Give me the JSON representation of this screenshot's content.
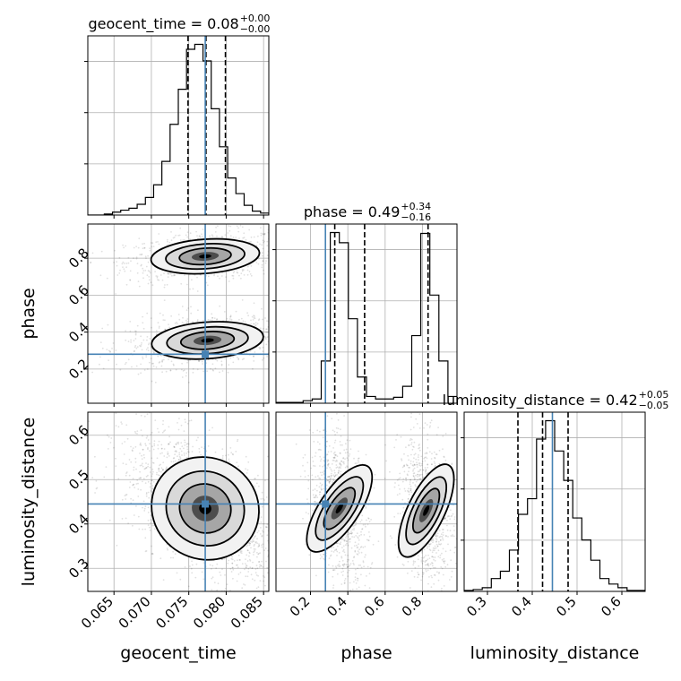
{
  "chart_data": {
    "type": "corner",
    "parameters": [
      "geocent_time",
      "phase",
      "luminosity_distance"
    ],
    "truths": {
      "geocent_time": 0.0772,
      "phase": 0.28,
      "luminosity_distance": 0.445
    },
    "titles": [
      {
        "param": "geocent_time",
        "prefix": "geocent_time = 0.08",
        "sup": "+0.00",
        "sub": "−0.00"
      },
      {
        "param": "phase",
        "prefix": "phase = 0.49",
        "sup": "+0.34",
        "sub": "−0.16"
      },
      {
        "param": "luminosity_distance",
        "prefix": "luminosity_distance = 0.42",
        "sup": "+0.05",
        "sub": "−0.05"
      }
    ],
    "axis_labels": {
      "geocent_time": "geocent_time",
      "phase": "phase",
      "luminosity_distance": "luminosity_distance"
    },
    "ranges": {
      "geocent_time": [
        0.0615,
        0.0857
      ],
      "phase": [
        0.015,
        0.985
      ],
      "luminosity_distance": [
        0.248,
        0.652
      ]
    },
    "ticks": {
      "geocent_time": [
        "0.065",
        "0.070",
        "0.075",
        "0.080",
        "0.085"
      ],
      "phase_x": [
        "0.2",
        "0.4",
        "0.6",
        "0.8"
      ],
      "phase_y": [
        "0.2",
        "0.4",
        "0.6",
        "0.8"
      ],
      "luminosity_distance_x": [
        "0.3",
        "0.4",
        "0.5",
        "0.6"
      ],
      "luminosity_distance_y": [
        "0.3",
        "0.4",
        "0.5",
        "0.6"
      ]
    },
    "quantiles": {
      "geocent_time": [
        0.0749,
        0.0773,
        0.0799
      ],
      "phase": [
        0.33,
        0.49,
        0.83
      ],
      "luminosity_distance": [
        0.368,
        0.423,
        0.48
      ]
    },
    "histograms": {
      "geocent_time": {
        "range": [
          0.0615,
          0.0857
        ],
        "counts": [
          0,
          0,
          1,
          3,
          5,
          7,
          11,
          18,
          31,
          55,
          93,
          129,
          170,
          175,
          158,
          109,
          70,
          38,
          22,
          10,
          4,
          2
        ]
      },
      "phase": {
        "range": [
          0.015,
          0.985
        ],
        "counts": [
          1,
          1,
          1,
          3,
          5,
          50,
          202,
          190,
          100,
          31,
          8,
          5,
          5,
          7,
          20,
          80,
          201,
          128,
          50,
          8
        ]
      },
      "luminosity_distance": {
        "range": [
          0.248,
          0.652
        ],
        "counts": [
          1,
          2,
          4,
          14,
          22,
          45,
          84,
          101,
          166,
          186,
          153,
          121,
          80,
          56,
          34,
          14,
          8,
          4,
          1,
          1
        ]
      }
    }
  }
}
